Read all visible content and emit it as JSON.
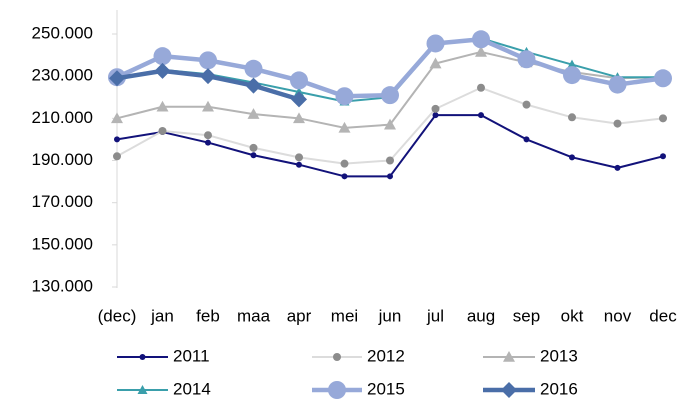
{
  "chart_data": {
    "type": "line",
    "categories": [
      "(dec)",
      "jan",
      "feb",
      "maa",
      "apr",
      "mei",
      "jun",
      "jul",
      "aug",
      "sep",
      "okt",
      "nov",
      "dec"
    ],
    "ylim": [
      130000,
      250000
    ],
    "yticks": [
      {
        "value": 130000,
        "label": "130.000"
      },
      {
        "value": 150000,
        "label": "150.000"
      },
      {
        "value": 170000,
        "label": "170.000"
      },
      {
        "value": 190000,
        "label": "190.000"
      },
      {
        "value": 210000,
        "label": "210.000"
      },
      {
        "value": 230000,
        "label": "230.000"
      },
      {
        "value": 250000,
        "label": "250.000"
      }
    ],
    "grid": false,
    "series": [
      {
        "name": "2011",
        "color": "#12127a",
        "marker_color": "#12127a",
        "marker": "circle",
        "marker_size": 3,
        "line_width": 2,
        "values": [
          200000,
          203500,
          198500,
          192500,
          188000,
          182500,
          182500,
          211500,
          211500,
          200000,
          191500,
          186500,
          192000
        ]
      },
      {
        "name": "2012",
        "color": "#dcdcdc",
        "marker_color": "#8c8c8c",
        "marker": "circle",
        "marker_size": 4,
        "line_width": 2,
        "values": [
          192000,
          204000,
          202000,
          196000,
          191500,
          188500,
          190000,
          214500,
          224500,
          216500,
          210500,
          207500,
          210000
        ]
      },
      {
        "name": "2013",
        "color": "#b4b4b4",
        "marker_color": "#b4b4b4",
        "marker": "triangle",
        "marker_size": 6,
        "line_width": 2,
        "values": [
          210000,
          215500,
          215500,
          212000,
          210000,
          205500,
          207000,
          236000,
          241500,
          236500,
          232000,
          229000,
          229500
        ]
      },
      {
        "name": "2014",
        "color": "#3a9fab",
        "marker_color": "#3a9fab",
        "marker": "triangle",
        "marker_size": 5,
        "line_width": 2,
        "values": [
          229500,
          233000,
          231000,
          227000,
          222500,
          218000,
          220000,
          245000,
          248000,
          241500,
          235500,
          229500,
          229500
        ]
      },
      {
        "name": "2015",
        "color": "#97a9d9",
        "marker_color": "#97a9d9",
        "marker": "circle",
        "marker_size": 9,
        "line_width": 4.5,
        "values": [
          229500,
          239500,
          237500,
          233500,
          228000,
          220500,
          221000,
          245500,
          247500,
          238000,
          230500,
          226000,
          229000
        ]
      },
      {
        "name": "2016",
        "color": "#4a6ea8",
        "marker_color": "#4a6ea8",
        "marker": "diamond",
        "marker_size": 8,
        "line_width": 4.5,
        "values": [
          229000,
          232500,
          230000,
          225500,
          219000,
          null,
          null,
          null,
          null,
          null,
          null,
          null,
          null
        ]
      }
    ]
  }
}
